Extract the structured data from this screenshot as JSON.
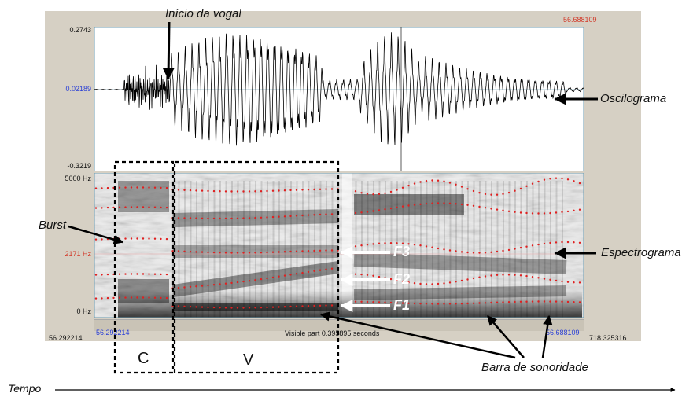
{
  "waveform": {
    "top_value": "0.2743",
    "mid_value": "0.02189",
    "bottom_value": "-0.3219",
    "cursor_time": "56.688109"
  },
  "spectrogram": {
    "freq_top": "5000 Hz",
    "freq_mid": "2171 Hz",
    "freq_bottom": "0 Hz"
  },
  "timebar": {
    "left_total": "56.292214",
    "left_visible": "56.292214",
    "visible_part": "Visible part 0.395895 seconds",
    "right_visible": "56.688109",
    "right_total": "718.325316"
  },
  "annotations": {
    "vowel_onset": "Início da vogal",
    "oscillogram": "Oscilograma",
    "burst": "Burst",
    "spectrogram": "Espectrograma",
    "f3": "F3",
    "f2": "F2",
    "f1": "F1",
    "voicing_bar": "Barra de sonoridade",
    "consonant": "C",
    "vowel": "V",
    "time": "Tempo"
  },
  "colors": {
    "frame": "#d6d0c4",
    "axis_blue": "#2a3fd6",
    "cursor_red": "#d23a2a",
    "formant_dots": "#e02020"
  }
}
